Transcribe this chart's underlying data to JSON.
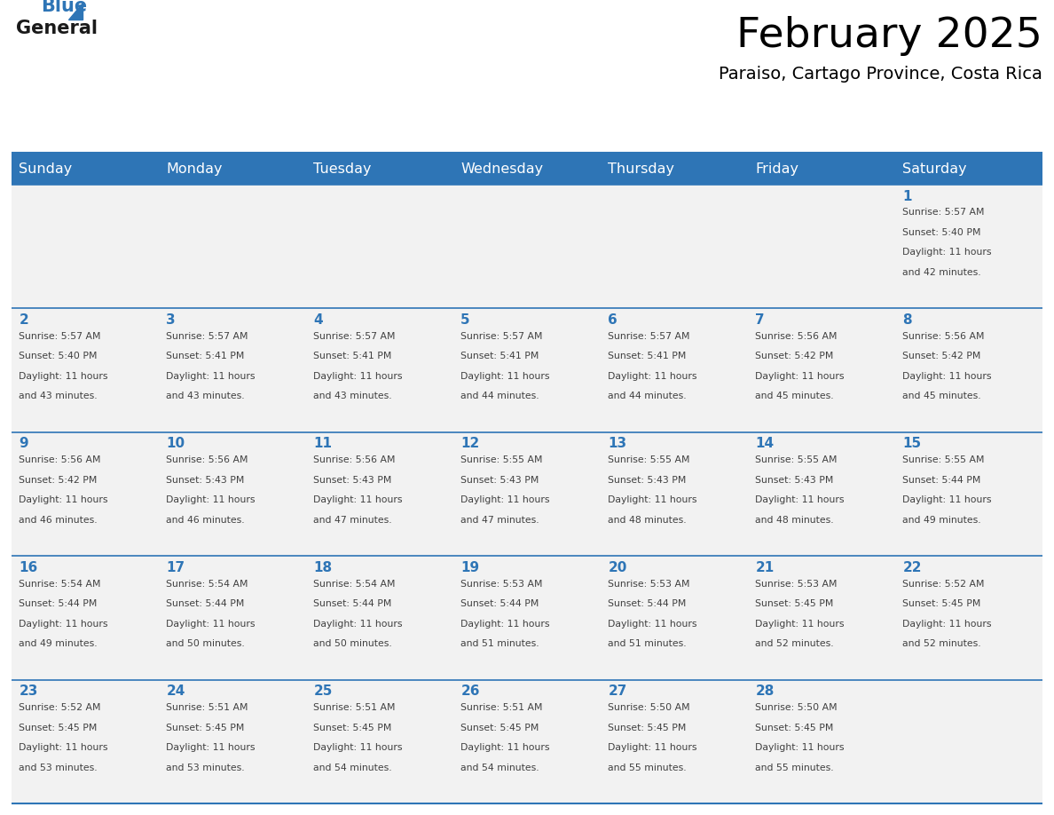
{
  "title": "February 2025",
  "subtitle": "Paraiso, Cartago Province, Costa Rica",
  "header_bg": "#2e75b6",
  "header_text_color": "#ffffff",
  "cell_bg": "#f2f2f2",
  "day_number_color": "#2e75b6",
  "info_text_color": "#404040",
  "border_color": "#2e75b6",
  "days_of_week": [
    "Sunday",
    "Monday",
    "Tuesday",
    "Wednesday",
    "Thursday",
    "Friday",
    "Saturday"
  ],
  "weeks": [
    [
      {
        "day": null,
        "sunrise": null,
        "sunset": null,
        "daylight": null
      },
      {
        "day": null,
        "sunrise": null,
        "sunset": null,
        "daylight": null
      },
      {
        "day": null,
        "sunrise": null,
        "sunset": null,
        "daylight": null
      },
      {
        "day": null,
        "sunrise": null,
        "sunset": null,
        "daylight": null
      },
      {
        "day": null,
        "sunrise": null,
        "sunset": null,
        "daylight": null
      },
      {
        "day": null,
        "sunrise": null,
        "sunset": null,
        "daylight": null
      },
      {
        "day": 1,
        "sunrise": "5:57 AM",
        "sunset": "5:40 PM",
        "daylight": "11 hours and 42 minutes."
      }
    ],
    [
      {
        "day": 2,
        "sunrise": "5:57 AM",
        "sunset": "5:40 PM",
        "daylight": "11 hours and 43 minutes."
      },
      {
        "day": 3,
        "sunrise": "5:57 AM",
        "sunset": "5:41 PM",
        "daylight": "11 hours and 43 minutes."
      },
      {
        "day": 4,
        "sunrise": "5:57 AM",
        "sunset": "5:41 PM",
        "daylight": "11 hours and 43 minutes."
      },
      {
        "day": 5,
        "sunrise": "5:57 AM",
        "sunset": "5:41 PM",
        "daylight": "11 hours and 44 minutes."
      },
      {
        "day": 6,
        "sunrise": "5:57 AM",
        "sunset": "5:41 PM",
        "daylight": "11 hours and 44 minutes."
      },
      {
        "day": 7,
        "sunrise": "5:56 AM",
        "sunset": "5:42 PM",
        "daylight": "11 hours and 45 minutes."
      },
      {
        "day": 8,
        "sunrise": "5:56 AM",
        "sunset": "5:42 PM",
        "daylight": "11 hours and 45 minutes."
      }
    ],
    [
      {
        "day": 9,
        "sunrise": "5:56 AM",
        "sunset": "5:42 PM",
        "daylight": "11 hours and 46 minutes."
      },
      {
        "day": 10,
        "sunrise": "5:56 AM",
        "sunset": "5:43 PM",
        "daylight": "11 hours and 46 minutes."
      },
      {
        "day": 11,
        "sunrise": "5:56 AM",
        "sunset": "5:43 PM",
        "daylight": "11 hours and 47 minutes."
      },
      {
        "day": 12,
        "sunrise": "5:55 AM",
        "sunset": "5:43 PM",
        "daylight": "11 hours and 47 minutes."
      },
      {
        "day": 13,
        "sunrise": "5:55 AM",
        "sunset": "5:43 PM",
        "daylight": "11 hours and 48 minutes."
      },
      {
        "day": 14,
        "sunrise": "5:55 AM",
        "sunset": "5:43 PM",
        "daylight": "11 hours and 48 minutes."
      },
      {
        "day": 15,
        "sunrise": "5:55 AM",
        "sunset": "5:44 PM",
        "daylight": "11 hours and 49 minutes."
      }
    ],
    [
      {
        "day": 16,
        "sunrise": "5:54 AM",
        "sunset": "5:44 PM",
        "daylight": "11 hours and 49 minutes."
      },
      {
        "day": 17,
        "sunrise": "5:54 AM",
        "sunset": "5:44 PM",
        "daylight": "11 hours and 50 minutes."
      },
      {
        "day": 18,
        "sunrise": "5:54 AM",
        "sunset": "5:44 PM",
        "daylight": "11 hours and 50 minutes."
      },
      {
        "day": 19,
        "sunrise": "5:53 AM",
        "sunset": "5:44 PM",
        "daylight": "11 hours and 51 minutes."
      },
      {
        "day": 20,
        "sunrise": "5:53 AM",
        "sunset": "5:44 PM",
        "daylight": "11 hours and 51 minutes."
      },
      {
        "day": 21,
        "sunrise": "5:53 AM",
        "sunset": "5:45 PM",
        "daylight": "11 hours and 52 minutes."
      },
      {
        "day": 22,
        "sunrise": "5:52 AM",
        "sunset": "5:45 PM",
        "daylight": "11 hours and 52 minutes."
      }
    ],
    [
      {
        "day": 23,
        "sunrise": "5:52 AM",
        "sunset": "5:45 PM",
        "daylight": "11 hours and 53 minutes."
      },
      {
        "day": 24,
        "sunrise": "5:51 AM",
        "sunset": "5:45 PM",
        "daylight": "11 hours and 53 minutes."
      },
      {
        "day": 25,
        "sunrise": "5:51 AM",
        "sunset": "5:45 PM",
        "daylight": "11 hours and 54 minutes."
      },
      {
        "day": 26,
        "sunrise": "5:51 AM",
        "sunset": "5:45 PM",
        "daylight": "11 hours and 54 minutes."
      },
      {
        "day": 27,
        "sunrise": "5:50 AM",
        "sunset": "5:45 PM",
        "daylight": "11 hours and 55 minutes."
      },
      {
        "day": 28,
        "sunrise": "5:50 AM",
        "sunset": "5:45 PM",
        "daylight": "11 hours and 55 minutes."
      },
      {
        "day": null,
        "sunrise": null,
        "sunset": null,
        "daylight": null
      }
    ]
  ],
  "logo_general_color": "#1a1a1a",
  "logo_blue_color": "#2e75b6",
  "logo_triangle_color": "#2e75b6",
  "fig_width": 11.88,
  "fig_height": 9.18,
  "dpi": 100
}
